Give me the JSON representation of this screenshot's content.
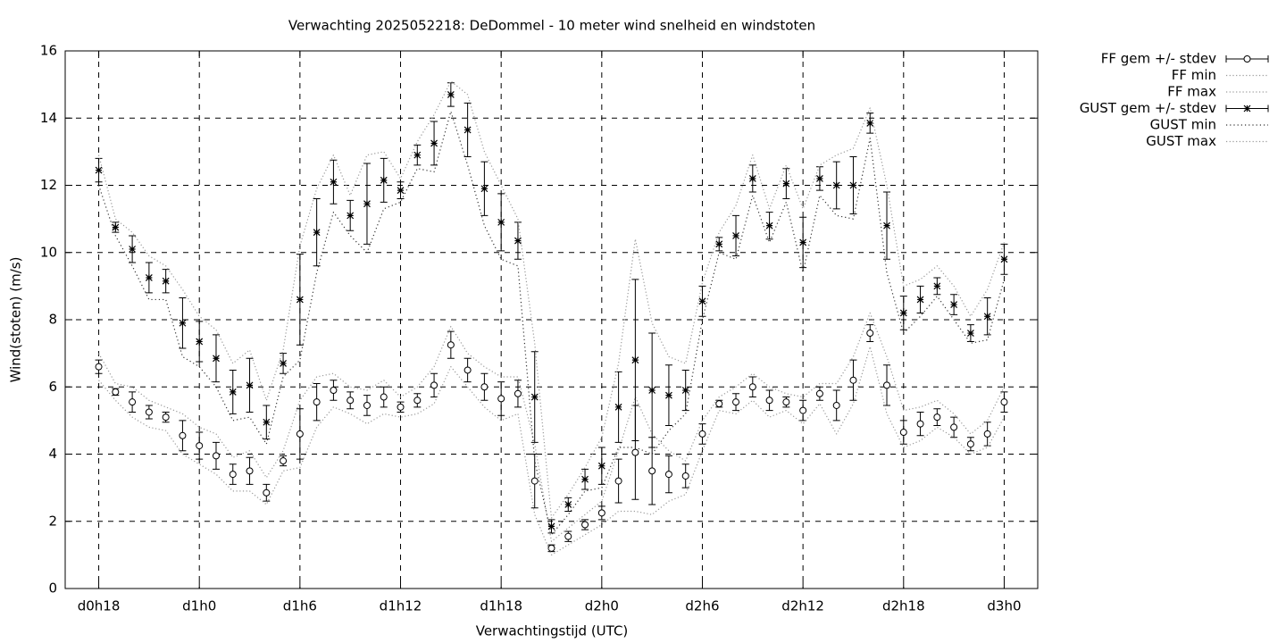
{
  "chart_data": {
    "type": "errorbar_line",
    "title": "Verwachting 2025052218: DeDommel - 10 meter wind snelheid en windstoten",
    "x_label": "Verwachtingstijd (UTC)",
    "y_label": "Wind(stoten) (m/s)",
    "x": [
      18,
      19,
      20,
      21,
      22,
      23,
      24,
      25,
      26,
      27,
      28,
      29,
      30,
      31,
      32,
      33,
      34,
      35,
      36,
      37,
      38,
      39,
      40,
      41,
      42,
      43,
      44,
      45,
      46,
      47,
      48,
      49,
      50,
      51,
      52,
      53,
      54,
      55,
      56,
      57,
      58,
      59,
      60,
      61,
      62,
      63,
      64,
      65,
      66,
      67,
      68,
      69,
      70,
      71,
      72
    ],
    "xlim": [
      16,
      74
    ],
    "xticks": [
      {
        "value": 18,
        "label": "d0h18"
      },
      {
        "value": 24,
        "label": "d1h0"
      },
      {
        "value": 30,
        "label": "d1h6"
      },
      {
        "value": 36,
        "label": "d1h12"
      },
      {
        "value": 42,
        "label": "d1h18"
      },
      {
        "value": 48,
        "label": "d2h0"
      },
      {
        "value": 54,
        "label": "d2h6"
      },
      {
        "value": 60,
        "label": "d2h12"
      },
      {
        "value": 66,
        "label": "d2h18"
      },
      {
        "value": 72,
        "label": "d3h0"
      }
    ],
    "ylim": [
      0,
      16
    ],
    "yticks": [
      0,
      2,
      4,
      6,
      8,
      10,
      12,
      14,
      16
    ],
    "grid": true,
    "legend": "outside-right-top",
    "series": [
      {
        "name": "FF gem +/- stdev",
        "color": "#000000",
        "style": "errorbars",
        "marker": "circle",
        "values": [
          6.6,
          5.85,
          5.55,
          5.25,
          5.1,
          4.55,
          4.25,
          3.95,
          3.4,
          3.5,
          2.85,
          3.8,
          4.6,
          5.55,
          5.9,
          5.6,
          5.45,
          5.7,
          5.4,
          5.6,
          6.05,
          7.25,
          6.5,
          6.0,
          5.65,
          5.8,
          3.2,
          1.2,
          1.55,
          1.9,
          2.25,
          3.2,
          4.05,
          3.5,
          3.4,
          3.35,
          4.6,
          5.5,
          5.55,
          6.0,
          5.6,
          5.55,
          5.3,
          5.8,
          5.45,
          6.2,
          7.6,
          6.05,
          4.65,
          4.9,
          5.1,
          4.8,
          4.3,
          4.6,
          5.55
        ],
        "errors": [
          0.2,
          0.1,
          0.3,
          0.2,
          0.15,
          0.45,
          0.4,
          0.4,
          0.3,
          0.4,
          0.25,
          0.15,
          0.75,
          0.55,
          0.3,
          0.25,
          0.3,
          0.3,
          0.15,
          0.2,
          0.35,
          0.4,
          0.35,
          0.4,
          0.5,
          0.4,
          0.8,
          0.1,
          0.15,
          0.15,
          0.2,
          0.65,
          1.4,
          1.0,
          0.55,
          0.35,
          0.3,
          0.1,
          0.25,
          0.3,
          0.3,
          0.15,
          0.3,
          0.2,
          0.45,
          0.6,
          0.25,
          0.6,
          0.35,
          0.35,
          0.25,
          0.3,
          0.2,
          0.35,
          0.3
        ]
      },
      {
        "name": "FF min",
        "color": "#999999",
        "style": "dotted",
        "values": [
          6.2,
          5.6,
          5.1,
          4.8,
          4.7,
          4.0,
          3.7,
          3.4,
          2.9,
          2.9,
          2.5,
          3.5,
          3.6,
          4.8,
          5.4,
          5.2,
          4.9,
          5.2,
          5.1,
          5.2,
          5.5,
          6.6,
          6.0,
          5.4,
          5.0,
          5.2,
          2.2,
          1.0,
          1.3,
          1.6,
          1.9,
          2.3,
          2.3,
          2.2,
          2.6,
          2.8,
          4.1,
          5.3,
          5.2,
          5.6,
          5.1,
          5.3,
          4.9,
          5.5,
          4.6,
          5.5,
          7.2,
          5.2,
          4.2,
          4.4,
          4.8,
          4.5,
          4.0,
          4.2,
          5.1
        ]
      },
      {
        "name": "FF max",
        "color": "#999999",
        "style": "dotted",
        "values": [
          7.0,
          6.1,
          6.0,
          5.6,
          5.4,
          5.2,
          4.8,
          4.6,
          3.9,
          4.1,
          3.3,
          4.1,
          5.6,
          6.3,
          6.4,
          6.0,
          5.9,
          6.2,
          5.7,
          6.0,
          6.6,
          7.8,
          7.0,
          6.6,
          6.3,
          6.3,
          4.3,
          1.4,
          1.8,
          2.2,
          2.6,
          4.1,
          5.7,
          4.6,
          4.1,
          3.8,
          5.0,
          5.7,
          6.0,
          6.4,
          6.0,
          5.8,
          5.7,
          6.1,
          6.1,
          6.9,
          8.2,
          6.9,
          5.3,
          5.4,
          5.6,
          5.2,
          4.6,
          5.0,
          6.0
        ]
      },
      {
        "name": "GUST gem +/- stdev",
        "color": "#000000",
        "style": "errorbars",
        "marker": "star",
        "values": [
          12.45,
          10.75,
          10.1,
          9.25,
          9.15,
          7.9,
          7.35,
          6.85,
          5.85,
          6.05,
          4.95,
          6.7,
          8.6,
          10.6,
          12.1,
          11.1,
          11.45,
          12.15,
          11.85,
          12.9,
          13.25,
          14.7,
          13.65,
          11.9,
          10.9,
          10.35,
          5.7,
          1.85,
          2.5,
          3.25,
          3.65,
          5.4,
          6.8,
          5.9,
          5.75,
          5.9,
          8.55,
          10.25,
          10.5,
          12.2,
          10.8,
          12.05,
          10.3,
          12.2,
          12.0,
          12.0,
          13.85,
          10.8,
          8.2,
          8.6,
          9.0,
          8.45,
          7.6,
          8.1,
          9.8
        ],
        "errors": [
          0.35,
          0.15,
          0.4,
          0.45,
          0.35,
          0.75,
          0.6,
          0.7,
          0.65,
          0.8,
          0.5,
          0.3,
          1.35,
          1.0,
          0.65,
          0.45,
          1.2,
          0.65,
          0.25,
          0.3,
          0.65,
          0.35,
          0.8,
          0.8,
          0.85,
          0.55,
          1.35,
          0.2,
          0.2,
          0.3,
          0.55,
          1.05,
          2.4,
          1.7,
          0.9,
          0.6,
          0.45,
          0.2,
          0.6,
          0.4,
          0.4,
          0.45,
          0.75,
          0.35,
          0.7,
          0.85,
          0.3,
          1.0,
          0.5,
          0.4,
          0.25,
          0.3,
          0.25,
          0.55,
          0.45
        ]
      },
      {
        "name": "GUST min",
        "color": "#333333",
        "style": "dotted-dense",
        "values": [
          12.0,
          10.5,
          9.6,
          8.6,
          8.6,
          6.9,
          6.6,
          6.0,
          5.0,
          5.1,
          4.3,
          6.3,
          6.8,
          9.4,
          11.2,
          10.5,
          10.0,
          11.3,
          11.5,
          12.5,
          12.4,
          14.2,
          12.6,
          10.8,
          9.8,
          9.6,
          3.8,
          1.6,
          2.2,
          2.9,
          3.0,
          4.2,
          4.2,
          4.0,
          4.7,
          5.2,
          8.0,
          10.0,
          9.8,
          11.7,
          10.3,
          11.5,
          9.4,
          11.7,
          11.1,
          11.0,
          13.4,
          9.4,
          7.6,
          8.1,
          8.7,
          8.0,
          7.3,
          7.4,
          9.2
        ]
      },
      {
        "name": "GUST max",
        "color": "#999999",
        "style": "dotted",
        "values": [
          12.9,
          11.0,
          10.6,
          9.9,
          9.6,
          8.9,
          8.1,
          7.7,
          6.7,
          7.1,
          5.6,
          7.1,
          10.2,
          11.9,
          12.9,
          11.7,
          12.9,
          13.0,
          12.2,
          13.3,
          14.1,
          15.1,
          14.7,
          13.0,
          12.0,
          11.0,
          7.3,
          2.1,
          2.8,
          3.6,
          4.5,
          6.7,
          10.4,
          7.9,
          6.9,
          6.7,
          9.1,
          10.6,
          11.4,
          12.9,
          11.3,
          12.6,
          11.3,
          12.6,
          12.9,
          13.1,
          14.3,
          12.0,
          9.0,
          9.2,
          9.6,
          9.0,
          8.1,
          8.9,
          10.3
        ]
      }
    ]
  }
}
